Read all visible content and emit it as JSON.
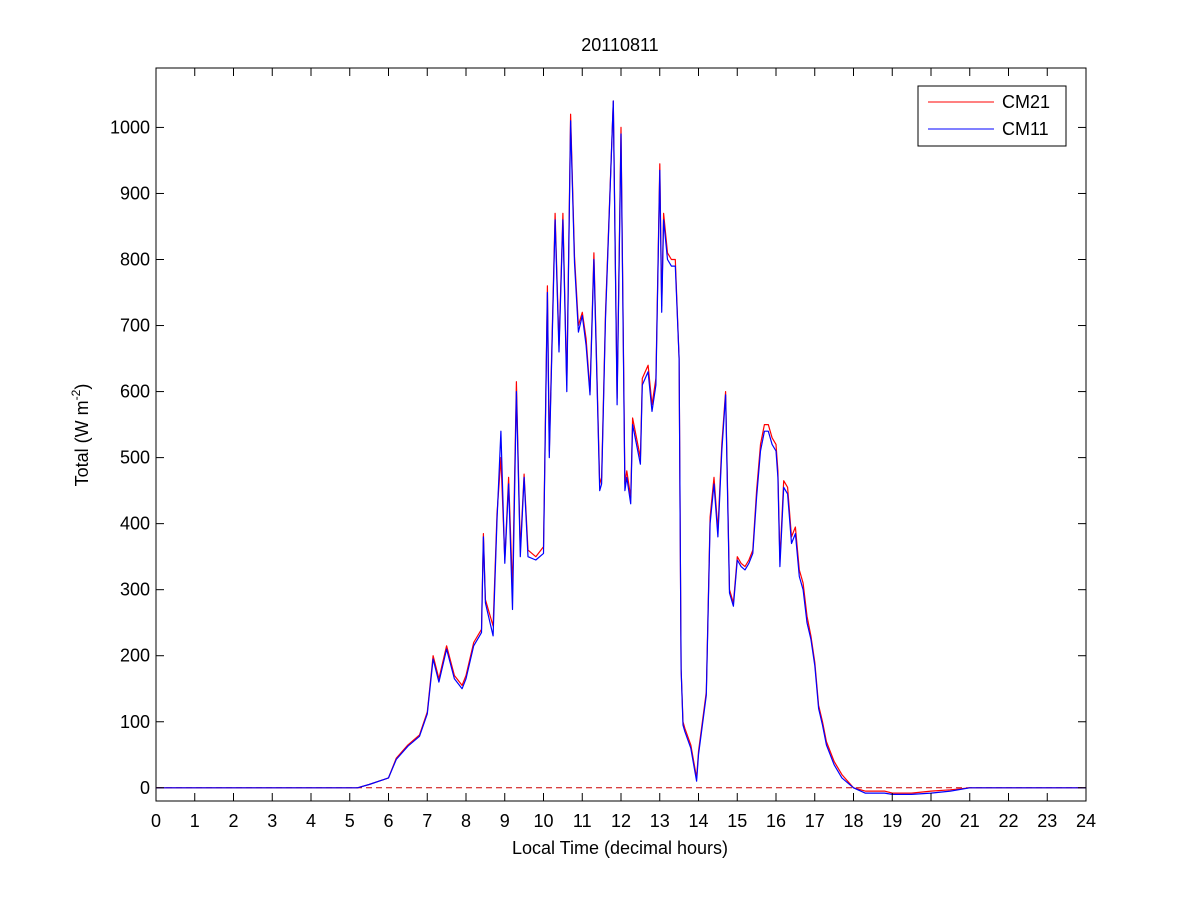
{
  "chart_data": {
    "type": "line",
    "title": "20110811",
    "xlabel": "Local Time (decimal hours)",
    "ylabel_main": "Total (W m",
    "ylabel_sup": "-2",
    "ylabel_close": ")",
    "xlim": [
      0,
      24
    ],
    "ylim": [
      -20,
      1090
    ],
    "xticks": [
      0,
      1,
      2,
      3,
      4,
      5,
      6,
      7,
      8,
      9,
      10,
      11,
      12,
      13,
      14,
      15,
      16,
      17,
      18,
      19,
      20,
      21,
      22,
      23,
      24
    ],
    "yticks": [
      0,
      100,
      200,
      300,
      400,
      500,
      600,
      700,
      800,
      900,
      1000
    ],
    "grid": false,
    "legend_position": "top-right",
    "zero_line": {
      "y": 0,
      "style": "dashed",
      "color": "#cc0000"
    },
    "series": [
      {
        "name": "CM21",
        "color": "#ff0000",
        "x": [
          0,
          5.2,
          5.5,
          6.0,
          6.2,
          6.5,
          6.8,
          7.0,
          7.15,
          7.3,
          7.5,
          7.7,
          7.9,
          8.0,
          8.2,
          8.4,
          8.45,
          8.5,
          8.7,
          8.8,
          8.9,
          9.0,
          9.1,
          9.2,
          9.3,
          9.4,
          9.5,
          9.6,
          9.8,
          10.0,
          10.1,
          10.15,
          10.3,
          10.4,
          10.5,
          10.6,
          10.7,
          10.8,
          10.9,
          11.0,
          11.1,
          11.2,
          11.3,
          11.45,
          11.5,
          11.6,
          11.8,
          11.9,
          12.0,
          12.1,
          12.15,
          12.25,
          12.3,
          12.5,
          12.55,
          12.7,
          12.8,
          12.9,
          13.0,
          13.05,
          13.1,
          13.2,
          13.3,
          13.4,
          13.5,
          13.55,
          13.6,
          13.65,
          13.8,
          13.95,
          14.0,
          14.2,
          14.3,
          14.4,
          14.5,
          14.6,
          14.7,
          14.75,
          14.8,
          14.9,
          15.0,
          15.1,
          15.2,
          15.3,
          15.4,
          15.5,
          15.6,
          15.7,
          15.8,
          15.9,
          16.0,
          16.05,
          16.1,
          16.2,
          16.3,
          16.4,
          16.5,
          16.6,
          16.7,
          16.8,
          16.9,
          17.0,
          17.1,
          17.2,
          17.3,
          17.5,
          17.7,
          18.0,
          18.3,
          18.5,
          18.8,
          19.0,
          19.5,
          20.0,
          20.5,
          21.0,
          22.0,
          24.0
        ],
        "y": [
          0,
          0,
          5,
          15,
          45,
          65,
          80,
          115,
          200,
          165,
          215,
          170,
          155,
          170,
          220,
          240,
          385,
          285,
          245,
          415,
          500,
          345,
          470,
          300,
          615,
          360,
          475,
          360,
          350,
          365,
          760,
          510,
          870,
          670,
          870,
          610,
          1020,
          805,
          700,
          720,
          680,
          600,
          810,
          460,
          470,
          720,
          1040,
          590,
          1000,
          460,
          480,
          440,
          560,
          500,
          620,
          640,
          580,
          620,
          945,
          730,
          870,
          810,
          800,
          800,
          650,
          180,
          100,
          90,
          65,
          15,
          55,
          145,
          410,
          470,
          390,
          520,
          600,
          450,
          300,
          280,
          350,
          340,
          335,
          345,
          360,
          450,
          520,
          550,
          550,
          530,
          520,
          480,
          345,
          465,
          455,
          380,
          395,
          330,
          310,
          260,
          230,
          190,
          125,
          100,
          70,
          40,
          20,
          0,
          -5,
          -5,
          -5,
          -8,
          -8,
          -5,
          -3,
          0,
          0,
          0
        ]
      },
      {
        "name": "CM11",
        "color": "#0000ff",
        "x": [
          0,
          5.2,
          5.5,
          6.0,
          6.2,
          6.5,
          6.8,
          7.0,
          7.15,
          7.3,
          7.5,
          7.7,
          7.9,
          8.0,
          8.2,
          8.4,
          8.45,
          8.5,
          8.7,
          8.8,
          8.9,
          9.0,
          9.1,
          9.2,
          9.3,
          9.4,
          9.5,
          9.6,
          9.8,
          10.0,
          10.1,
          10.15,
          10.3,
          10.4,
          10.5,
          10.6,
          10.7,
          10.8,
          10.9,
          11.0,
          11.1,
          11.2,
          11.3,
          11.45,
          11.5,
          11.6,
          11.8,
          11.9,
          12.0,
          12.1,
          12.15,
          12.25,
          12.3,
          12.5,
          12.55,
          12.7,
          12.8,
          12.9,
          13.0,
          13.05,
          13.1,
          13.2,
          13.3,
          13.4,
          13.5,
          13.55,
          13.6,
          13.65,
          13.8,
          13.95,
          14.0,
          14.2,
          14.3,
          14.4,
          14.5,
          14.6,
          14.7,
          14.75,
          14.8,
          14.9,
          15.0,
          15.1,
          15.2,
          15.3,
          15.4,
          15.5,
          15.6,
          15.7,
          15.8,
          15.9,
          16.0,
          16.05,
          16.1,
          16.2,
          16.3,
          16.4,
          16.5,
          16.6,
          16.7,
          16.8,
          16.9,
          17.0,
          17.1,
          17.2,
          17.3,
          17.5,
          17.7,
          18.0,
          18.3,
          18.5,
          18.8,
          19.0,
          19.5,
          20.0,
          20.5,
          21.0,
          22.0,
          24.0
        ],
        "y": [
          0,
          0,
          5,
          15,
          43,
          63,
          78,
          112,
          195,
          160,
          210,
          165,
          150,
          165,
          215,
          235,
          380,
          280,
          230,
          405,
          540,
          340,
          460,
          270,
          600,
          350,
          470,
          350,
          345,
          355,
          750,
          500,
          860,
          660,
          860,
          600,
          1010,
          795,
          690,
          715,
          670,
          595,
          800,
          450,
          460,
          710,
          1040,
          580,
          990,
          450,
          470,
          430,
          550,
          490,
          610,
          630,
          570,
          610,
          935,
          720,
          860,
          800,
          790,
          790,
          650,
          180,
          95,
          85,
          60,
          10,
          50,
          140,
          400,
          460,
          380,
          510,
          595,
          440,
          295,
          275,
          345,
          335,
          330,
          340,
          355,
          440,
          510,
          540,
          540,
          520,
          510,
          470,
          335,
          455,
          445,
          370,
          385,
          320,
          300,
          250,
          225,
          185,
          120,
          95,
          65,
          35,
          15,
          0,
          -8,
          -8,
          -8,
          -10,
          -10,
          -8,
          -5,
          0,
          0,
          0
        ]
      }
    ]
  }
}
